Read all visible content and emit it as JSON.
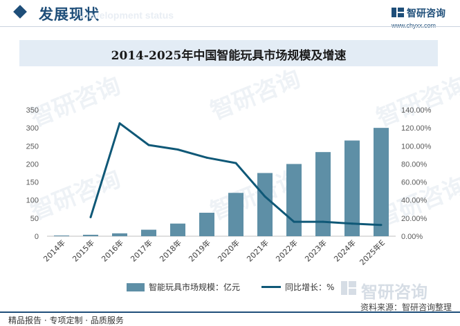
{
  "header": {
    "section_title": "发展现状",
    "ghost_text": "Development status",
    "logo_name": "智研咨询",
    "logo_url": "www.chyxx.com"
  },
  "watermark_text": "智研咨询",
  "chart_data": {
    "type": "bar",
    "title": "2014-2025年中国智能玩具市场规模及增速",
    "categories": [
      "2014年",
      "2015年",
      "2016年",
      "2017年",
      "2018年",
      "2019年",
      "2020年",
      "2021年",
      "2022年",
      "2023年",
      "2024年",
      "2025年E"
    ],
    "series": [
      {
        "name": "智能玩具市场规模：亿元",
        "type": "bar",
        "axis": "left",
        "color": "#5e8fa6",
        "values": [
          2,
          4,
          8,
          18,
          35,
          65,
          120,
          175,
          200,
          233,
          265,
          300
        ]
      },
      {
        "name": "同比增长：%",
        "type": "line",
        "axis": "right",
        "color": "#0f5877",
        "values": [
          null,
          21,
          125,
          101,
          96,
          87,
          81,
          44,
          16,
          16,
          14,
          12.5
        ]
      }
    ],
    "y_left": {
      "min": 0,
      "max": 350,
      "ticks": [
        "0",
        "50",
        "100",
        "150",
        "200",
        "250",
        "300",
        "350"
      ]
    },
    "y_right": {
      "min": 0,
      "max": 140,
      "ticks": [
        "0.00%",
        "20.00%",
        "40.00%",
        "60.00%",
        "80.00%",
        "100.00%",
        "120.00%",
        "140.00%"
      ]
    },
    "grid": false,
    "legend_position": "bottom"
  },
  "source_text": "资料来源：智研咨询整理",
  "footer_tags": "精品报告 · 专项定制 · 品质服务"
}
